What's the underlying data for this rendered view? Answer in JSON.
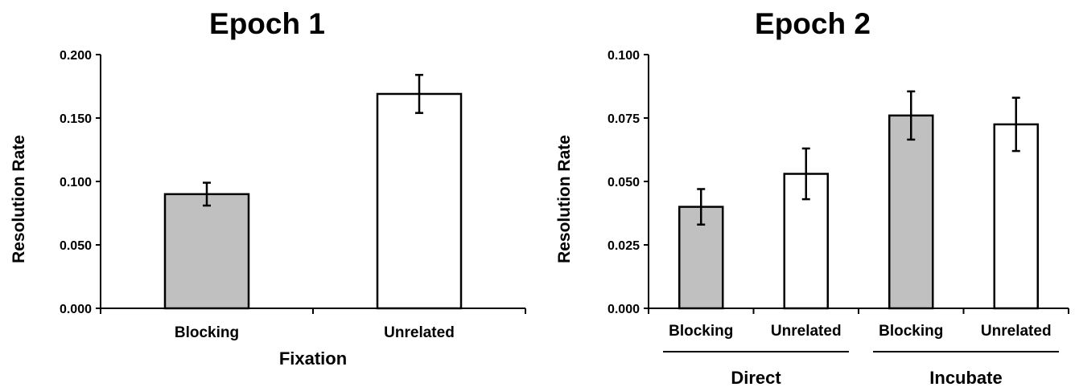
{
  "chart_data": [
    {
      "type": "bar",
      "title": "Epoch 1",
      "ylabel": "Resolution Rate",
      "xlabel": "Fixation",
      "ylim": [
        0,
        0.2
      ],
      "yticks": [
        "0.000",
        "0.050",
        "0.100",
        "0.150",
        "0.200"
      ],
      "categories": [
        "Blocking",
        "Unrelated"
      ],
      "values": [
        0.09,
        0.169
      ],
      "errors": [
        0.009,
        0.015
      ],
      "colors": [
        "#c0c0c0",
        "#ffffff"
      ],
      "groups": [],
      "grid": false,
      "error_bars": true
    },
    {
      "type": "bar",
      "title": "Epoch 2",
      "ylabel": "Resolution Rate",
      "xlabel": "",
      "ylim": [
        0,
        0.1
      ],
      "yticks": [
        "0.000",
        "0.025",
        "0.050",
        "0.075",
        "0.100"
      ],
      "categories": [
        "Blocking",
        "Unrelated",
        "Blocking",
        "Unrelated"
      ],
      "values": [
        0.04,
        0.053,
        0.076,
        0.0725
      ],
      "errors": [
        0.007,
        0.01,
        0.0095,
        0.0105
      ],
      "colors": [
        "#c0c0c0",
        "#ffffff",
        "#c0c0c0",
        "#ffffff"
      ],
      "groups": [
        {
          "label": "Direct",
          "categories": [
            0,
            1
          ]
        },
        {
          "label": "Incubate",
          "categories": [
            2,
            3
          ]
        }
      ],
      "grid": false,
      "error_bars": true
    }
  ]
}
